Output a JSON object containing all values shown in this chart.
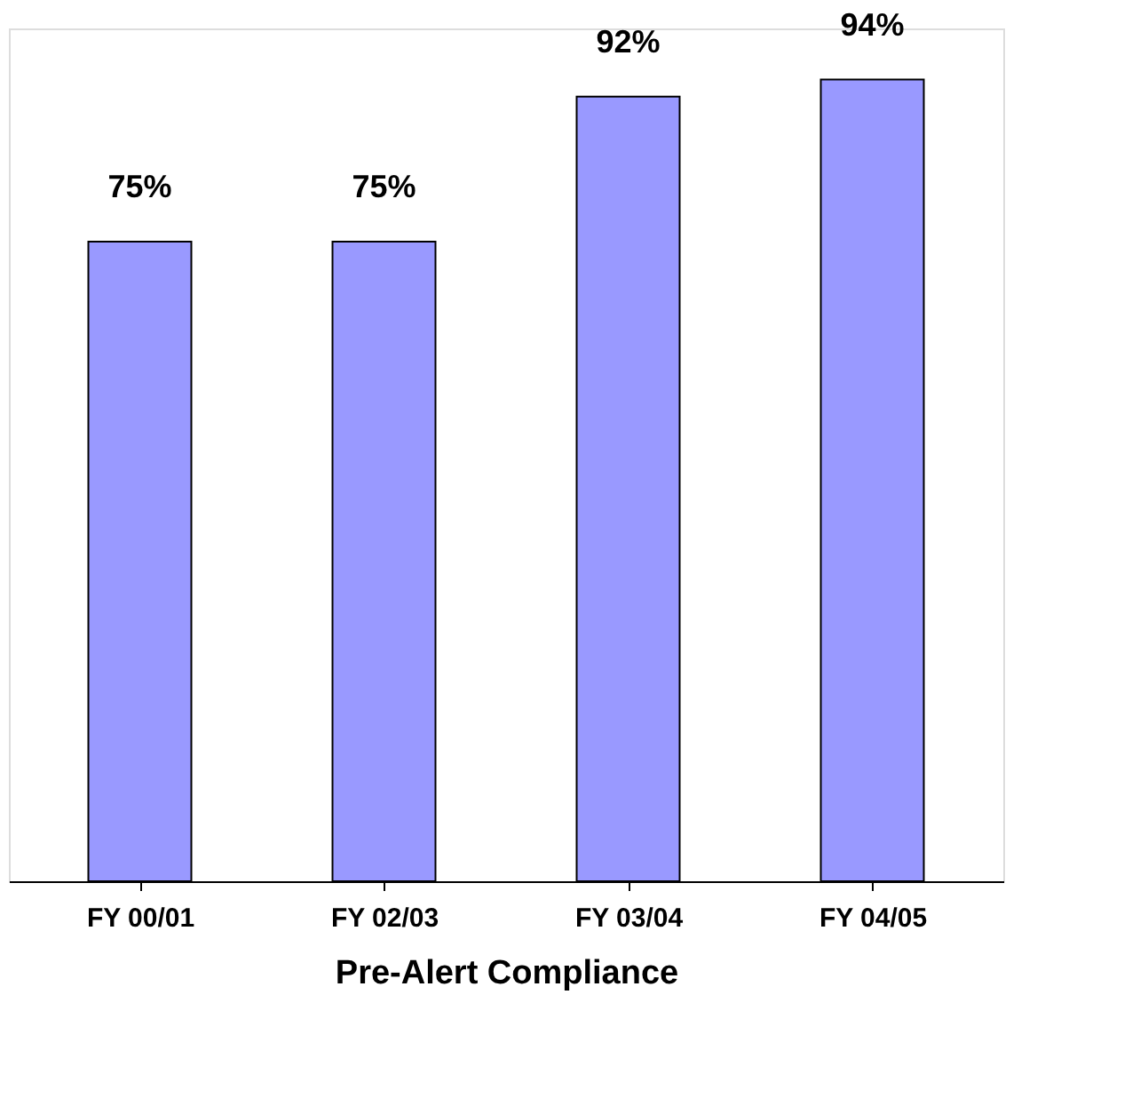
{
  "chart_data": {
    "type": "bar",
    "xlabel": "Pre-Alert Compliance",
    "categories": [
      "FY 00/01",
      "FY 02/03",
      "FY 03/04",
      "FY 04/05"
    ],
    "values": [
      75,
      75,
      92,
      94
    ],
    "value_labels": [
      "75%",
      "75%",
      "92%",
      "94%"
    ],
    "color": "#9999ff",
    "tick_labels": "x",
    "grid": false
  }
}
